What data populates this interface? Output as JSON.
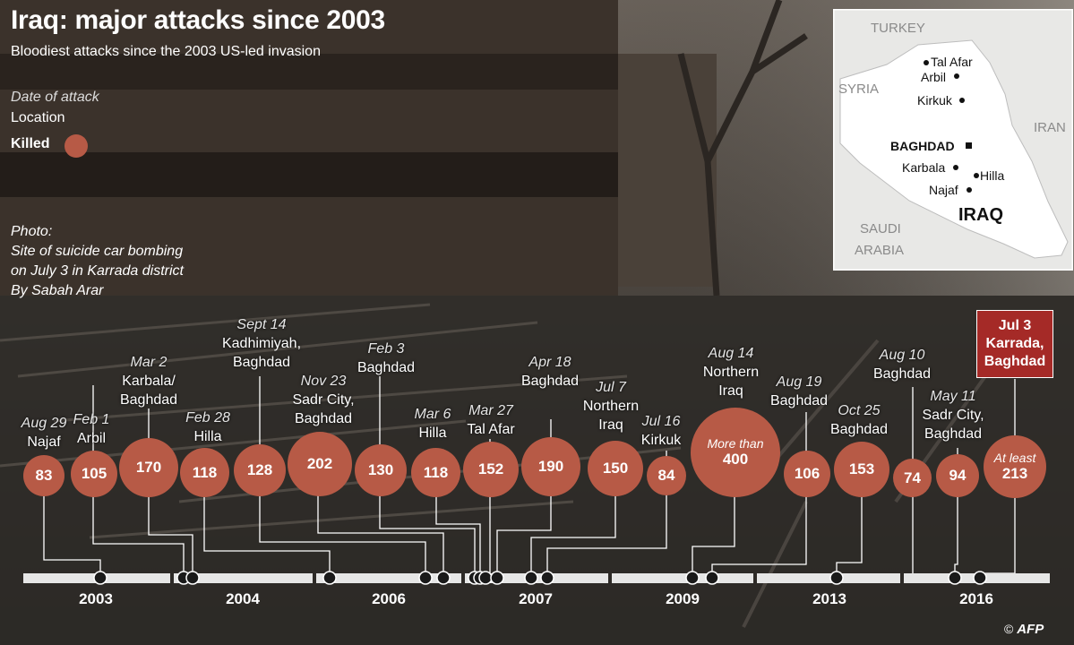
{
  "title": "Iraq: major attacks since 2003",
  "subtitle": "Bloodiest attacks since the 2003 US-led invasion",
  "legend": {
    "date": "Date of attack",
    "location": "Location",
    "killed": "Killed"
  },
  "photo": {
    "l1": "Photo:",
    "l2": "Site of suicide car bombing",
    "l3": "on July 3 in Karrada district",
    "l4": "By Sabah Arar"
  },
  "map": {
    "countries": {
      "turkey": "TURKEY",
      "syria": "SYRIA",
      "iran": "IRAN",
      "saudi1": "SAUDI",
      "saudi2": "ARABIA",
      "iraq": "IRAQ"
    },
    "cities": {
      "talafar": "Tal Afar",
      "arbil": "Arbil",
      "kirkuk": "Kirkuk",
      "baghdad": "BAGHDAD",
      "karbala": "Karbala",
      "hilla": "Hilla",
      "najaf": "Najaf"
    }
  },
  "attacks": [
    {
      "date": "Aug 29",
      "loc1": "Najaf",
      "killed": "83"
    },
    {
      "date": "Feb 1",
      "loc1": "Arbil",
      "killed": "105"
    },
    {
      "date": "Mar 2",
      "loc1": "Karbala/",
      "loc2": "Baghdad",
      "killed": "170"
    },
    {
      "date": "Feb 28",
      "loc1": "Hilla",
      "killed": "118"
    },
    {
      "date": "Sept 14",
      "loc1": "Kadhimiyah,",
      "loc2": "Baghdad",
      "killed": "128"
    },
    {
      "date": "Nov 23",
      "loc1": "Sadr City,",
      "loc2": "Baghdad",
      "killed": "202"
    },
    {
      "date": "Feb 3",
      "loc1": "Baghdad",
      "killed": "130"
    },
    {
      "date": "Mar 6",
      "loc1": "Hilla",
      "killed": "118"
    },
    {
      "date": "Mar 27",
      "loc1": "Tal Afar",
      "killed": "152"
    },
    {
      "date": "Apr 18",
      "loc1": "Baghdad",
      "killed": "190"
    },
    {
      "date": "Jul 7",
      "loc1": "Northern",
      "loc2": "Iraq",
      "killed": "150"
    },
    {
      "date": "Jul 16",
      "loc1": "Kirkuk",
      "killed": "84"
    },
    {
      "date": "Aug 14",
      "loc1": "Northern",
      "loc2": "Iraq",
      "qualifier": "More than",
      "killed": "400"
    },
    {
      "date": "Aug 19",
      "loc1": "Baghdad",
      "killed": "106"
    },
    {
      "date": "Oct 25",
      "loc1": "Baghdad",
      "killed": "153"
    },
    {
      "date": "Aug 10",
      "loc1": "Baghdad",
      "killed": "74"
    },
    {
      "date": "May 11",
      "loc1": "Sadr City,",
      "loc2": "Baghdad",
      "killed": "94"
    },
    {
      "date": "Jul 3",
      "loc1": "Karrada,",
      "loc2": "Baghdad",
      "qualifier": "At least",
      "killed": "213"
    }
  ],
  "years": [
    "2003",
    "2004",
    "2006",
    "2007",
    "2009",
    "2013",
    "2016"
  ],
  "credit": "AFP",
  "colors": {
    "bubble": "#b75a46",
    "highlight": "#a52a27",
    "map_land": "#ffffff",
    "map_other": "#e8e8e6"
  }
}
